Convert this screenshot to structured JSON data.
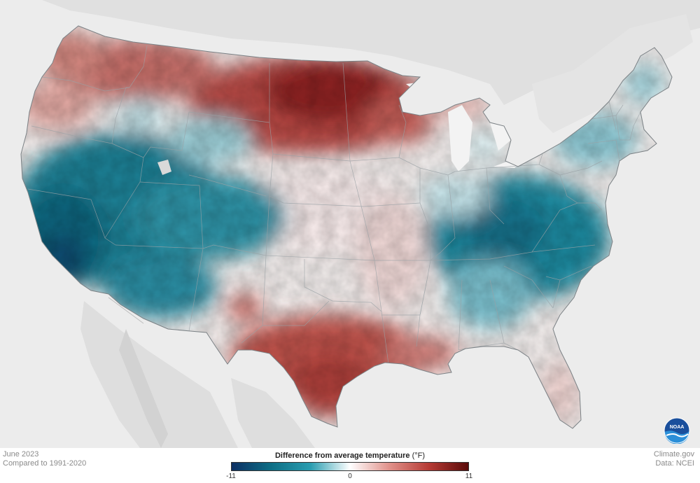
{
  "footer": {
    "date": "June 2023",
    "baseline": "Compared to 1991-2020",
    "source_site": "Climate.gov",
    "data_source": "Data: NCEI"
  },
  "legend": {
    "title": "Difference from average temperature",
    "unit": "(°F)",
    "min": "-11",
    "mid": "0",
    "max": "11",
    "scale_min": -11,
    "scale_max": 11,
    "colors": [
      "#0c2f63",
      "#0e6e85",
      "#2a9db0",
      "#ffffff",
      "#e0918a",
      "#b63b35",
      "#5a0a09"
    ]
  },
  "logo": {
    "text": "NOAA"
  },
  "map": {
    "subject": "Contiguous United States temperature anomaly",
    "anomaly_regions": [
      {
        "region": "Northern Plains",
        "anomaly": "warm"
      },
      {
        "region": "Pacific Northwest",
        "anomaly": "warm"
      },
      {
        "region": "Texas and Louisiana",
        "anomaly": "warm"
      },
      {
        "region": "Southwest and Great Basin",
        "anomaly": "cool"
      },
      {
        "region": "California",
        "anomaly": "cool"
      },
      {
        "region": "Ohio Valley and Southeast",
        "anomaly": "cool"
      },
      {
        "region": "Northeast",
        "anomaly": "cool"
      }
    ],
    "colors": {
      "background": "#ececec",
      "neighbor_land": "#e2e2e2",
      "water": "#f3f3f3"
    }
  }
}
